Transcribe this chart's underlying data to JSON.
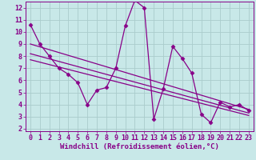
{
  "xlabel": "Windchill (Refroidissement éolien,°C)",
  "xlim": [
    -0.5,
    23.5
  ],
  "ylim": [
    1.8,
    12.5
  ],
  "yticks": [
    2,
    3,
    4,
    5,
    6,
    7,
    8,
    9,
    10,
    11,
    12
  ],
  "xticks": [
    0,
    1,
    2,
    3,
    4,
    5,
    6,
    7,
    8,
    9,
    10,
    11,
    12,
    13,
    14,
    15,
    16,
    17,
    18,
    19,
    20,
    21,
    22,
    23
  ],
  "bg_color": "#c8e8e8",
  "grid_color": "#aacccc",
  "line_color": "#880088",
  "series_main": {
    "x": [
      0,
      1,
      2,
      3,
      4,
      5,
      6,
      7,
      8,
      9,
      10,
      11,
      12,
      13,
      14,
      15,
      16,
      17,
      18,
      19,
      20,
      21,
      22,
      23
    ],
    "y": [
      10.6,
      9.0,
      8.0,
      7.0,
      6.5,
      5.8,
      4.0,
      5.2,
      5.4,
      7.0,
      10.5,
      12.6,
      12.0,
      2.8,
      5.3,
      8.8,
      7.8,
      6.6,
      3.2,
      2.5,
      4.2,
      3.8,
      4.0,
      3.5
    ]
  },
  "trend_lines": [
    {
      "x": [
        0,
        23
      ],
      "y": [
        9.0,
        3.6
      ]
    },
    {
      "x": [
        0,
        23
      ],
      "y": [
        8.2,
        3.3
      ]
    },
    {
      "x": [
        0,
        23
      ],
      "y": [
        7.7,
        3.1
      ]
    }
  ],
  "marker": "D",
  "markersize": 2.5,
  "linewidth": 0.9,
  "xlabel_fontsize": 6.5,
  "tick_fontsize": 6.0
}
